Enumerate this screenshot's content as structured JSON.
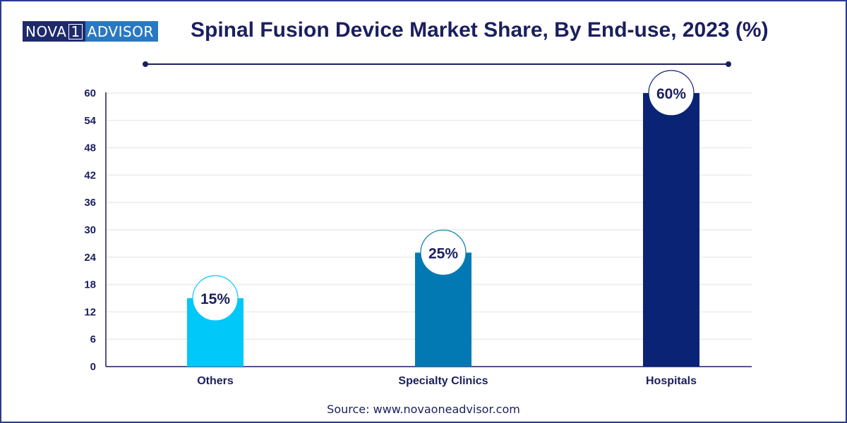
{
  "brand": {
    "left": "NOVA",
    "one": "1",
    "right": "ADVISOR"
  },
  "source": "Source: www.novaoneadvisor.com",
  "chart_data": {
    "type": "bar",
    "title": "Spinal Fusion Device Market Share, By End-use, 2023 (%)",
    "xlabel": "",
    "ylabel": "",
    "categories": [
      "Others",
      "Specialty Clinics",
      "Hospitals"
    ],
    "values": [
      15,
      25,
      60
    ],
    "data_labels": [
      "15%",
      "25%",
      "60%"
    ],
    "colors": [
      "#00c8f8",
      "#0379b4",
      "#0a2375"
    ],
    "ylim": [
      0,
      60
    ],
    "yticks": [
      0,
      6,
      12,
      18,
      24,
      30,
      36,
      42,
      48,
      54,
      60
    ],
    "grid": true,
    "legend": "none"
  }
}
